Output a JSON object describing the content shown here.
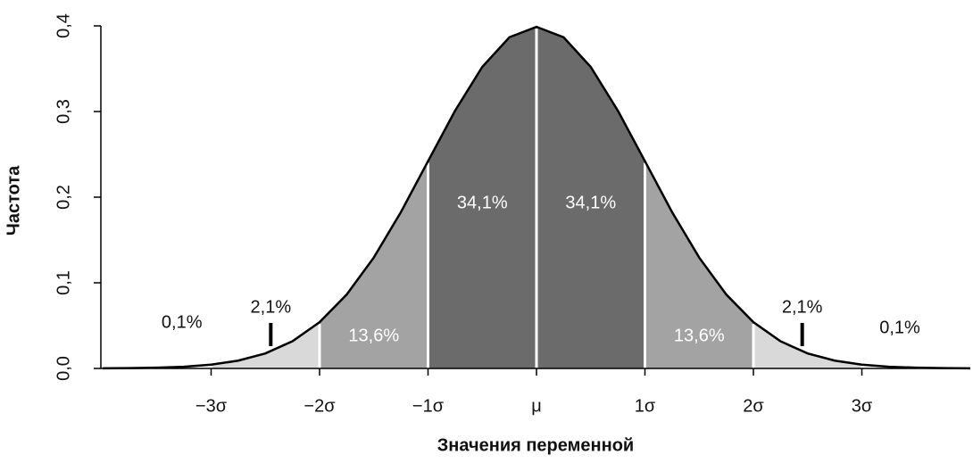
{
  "chart_data": {
    "type": "normal",
    "y_label": "Частота",
    "x_label": "Значения переменной",
    "xlim": [
      -4,
      4
    ],
    "ylim": [
      0,
      0.4
    ],
    "yticks": [
      {
        "value": 0,
        "label": "0,0"
      },
      {
        "value": 0.1,
        "label": "0,1"
      },
      {
        "value": 0.2,
        "label": "0,2"
      },
      {
        "value": 0.3,
        "label": "0,3"
      },
      {
        "value": 0.4,
        "label": "0,4"
      }
    ],
    "xticks": [
      {
        "value": -3,
        "label": "−3σ"
      },
      {
        "value": -2,
        "label": "−2σ"
      },
      {
        "value": -1,
        "label": "−1σ"
      },
      {
        "value": 0,
        "label": "μ"
      },
      {
        "value": 1,
        "label": "1σ"
      },
      {
        "value": 2,
        "label": "2σ"
      },
      {
        "value": 3,
        "label": "3σ"
      }
    ],
    "curve": {
      "x": [
        -4,
        -3.75,
        -3.5,
        -3.25,
        -3,
        -2.75,
        -2.5,
        -2.25,
        -2,
        -1.75,
        -1.5,
        -1.25,
        -1,
        -0.75,
        -0.5,
        -0.25,
        0,
        0.25,
        0.5,
        0.75,
        1,
        1.25,
        1.5,
        1.75,
        2,
        2.25,
        2.5,
        2.75,
        3,
        3.25,
        3.5,
        3.75,
        4
      ],
      "y": [
        0.0001,
        0.0004,
        0.0009,
        0.002,
        0.0044,
        0.0091,
        0.0175,
        0.0317,
        0.054,
        0.0863,
        0.1295,
        0.1826,
        0.242,
        0.3011,
        0.3521,
        0.3867,
        0.3989,
        0.3867,
        0.3521,
        0.3011,
        0.242,
        0.1826,
        0.1295,
        0.0863,
        0.054,
        0.0317,
        0.0175,
        0.0091,
        0.0044,
        0.002,
        0.0009,
        0.0004,
        0.0001
      ]
    },
    "edges": [
      -4,
      -3,
      -2,
      -1,
      0,
      1,
      2,
      3,
      4
    ],
    "values": [
      0.1,
      2.1,
      13.6,
      34.1,
      34.1,
      13.6,
      2.1,
      0.1
    ],
    "value_labels": [
      "0,1%",
      "2,1%",
      "13,6%",
      "34,1%",
      "34,1%",
      "13,6%",
      "2,1%",
      "0,1%"
    ],
    "colors": [
      "#ffffff",
      "#d9d9d9",
      "#a3a3a3",
      "#6b6b6b",
      "#6b6b6b",
      "#a3a3a3",
      "#d9d9d9",
      "#ffffff"
    ]
  }
}
